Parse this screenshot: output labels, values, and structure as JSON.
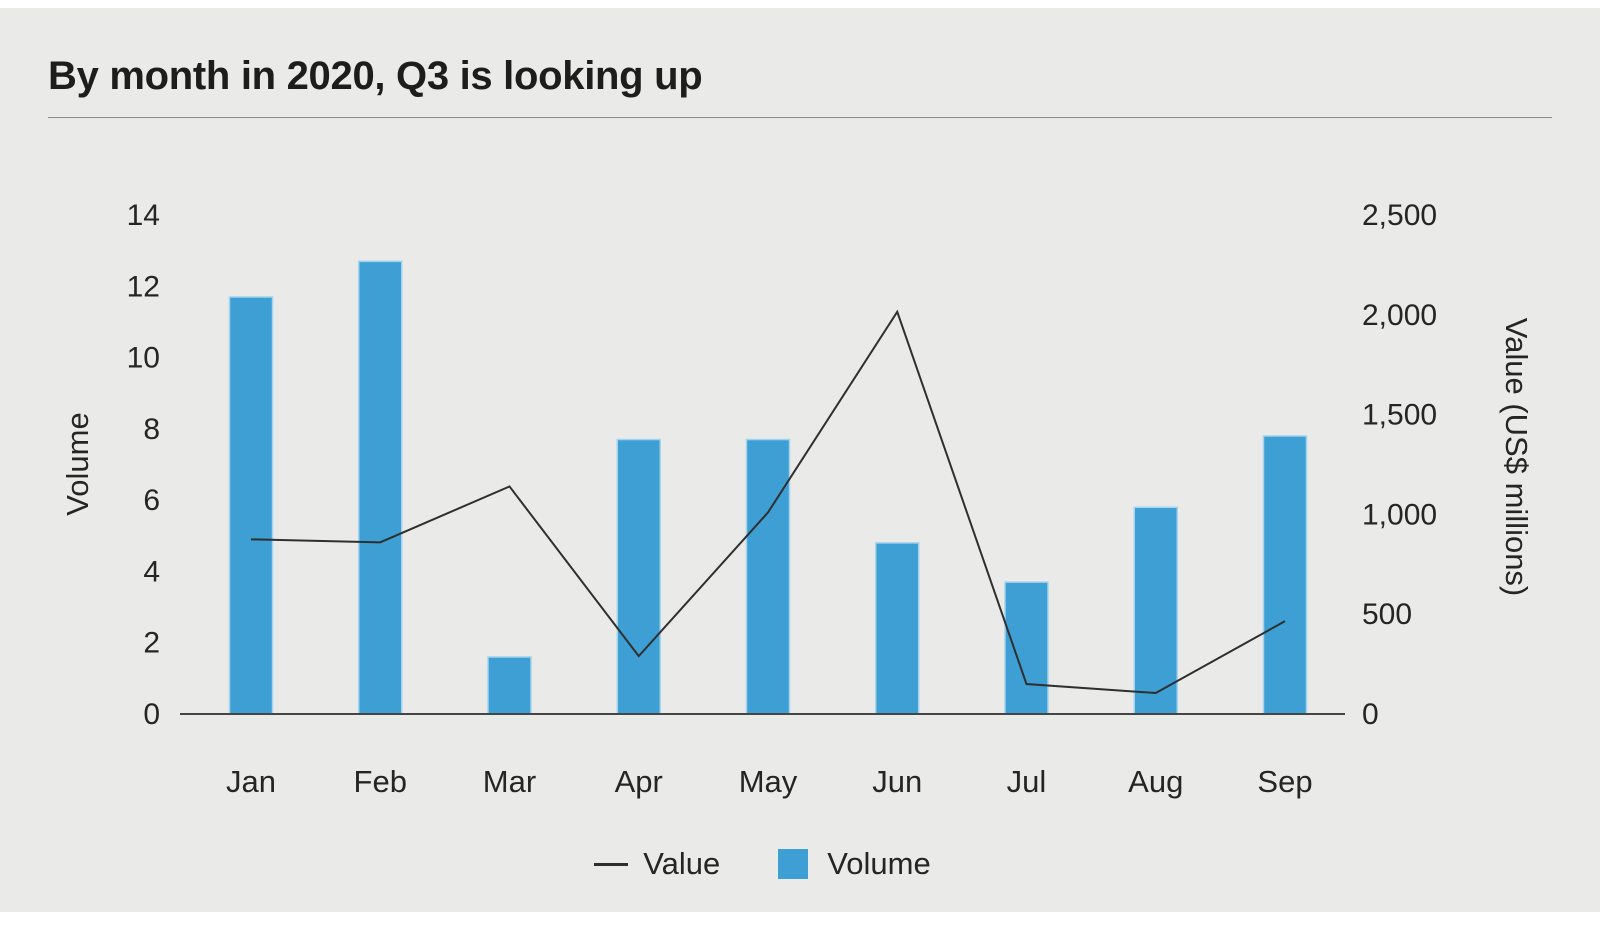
{
  "page": {
    "panel_background": "#eaeae9"
  },
  "header": {
    "title": "By month in 2020, Q3 is looking up"
  },
  "chart_data": {
    "type": "bar",
    "subtype": "combo-bar-line-dual-axis",
    "title": "By month in 2020, Q3 is looking up",
    "categories": [
      "Jan",
      "Feb",
      "Mar",
      "Apr",
      "May",
      "Jun",
      "Jul",
      "Aug",
      "Sep"
    ],
    "series": [
      {
        "name": "Volume",
        "type": "bar",
        "axis": "left",
        "color": "#3d9fd3",
        "border_color": "#a5d2ec",
        "values": [
          11.7,
          12.7,
          1.6,
          7.7,
          7.7,
          4.8,
          3.7,
          5.8,
          7.8
        ]
      },
      {
        "name": "Value",
        "type": "line",
        "axis": "right",
        "color": "#2f2f2f",
        "values": [
          875,
          860,
          1140,
          290,
          1010,
          2015,
          150,
          105,
          465
        ]
      }
    ],
    "left_axis": {
      "label": "Volume",
      "min": 0,
      "max": 14,
      "tick_step": 2,
      "ticks": [
        {
          "v": 0,
          "label": "0"
        },
        {
          "v": 2,
          "label": "2"
        },
        {
          "v": 4,
          "label": "4"
        },
        {
          "v": 6,
          "label": "6"
        },
        {
          "v": 8,
          "label": "8"
        },
        {
          "v": 10,
          "label": "10"
        },
        {
          "v": 12,
          "label": "12"
        },
        {
          "v": 14,
          "label": "14"
        }
      ]
    },
    "right_axis": {
      "label": "Value (US$ millions)",
      "min": 0,
      "max": 2500,
      "tick_step": 500,
      "ticks": [
        {
          "v": 0,
          "label": "0"
        },
        {
          "v": 500,
          "label": "500"
        },
        {
          "v": 1000,
          "label": "1,000"
        },
        {
          "v": 1500,
          "label": "1,500"
        },
        {
          "v": 2000,
          "label": "2,000"
        },
        {
          "v": 2500,
          "label": "2,500"
        }
      ]
    },
    "grid": false,
    "legend_position": "bottom-center",
    "legend": [
      {
        "label": "Value",
        "marker": "line"
      },
      {
        "label": "Volume",
        "marker": "square"
      }
    ]
  }
}
